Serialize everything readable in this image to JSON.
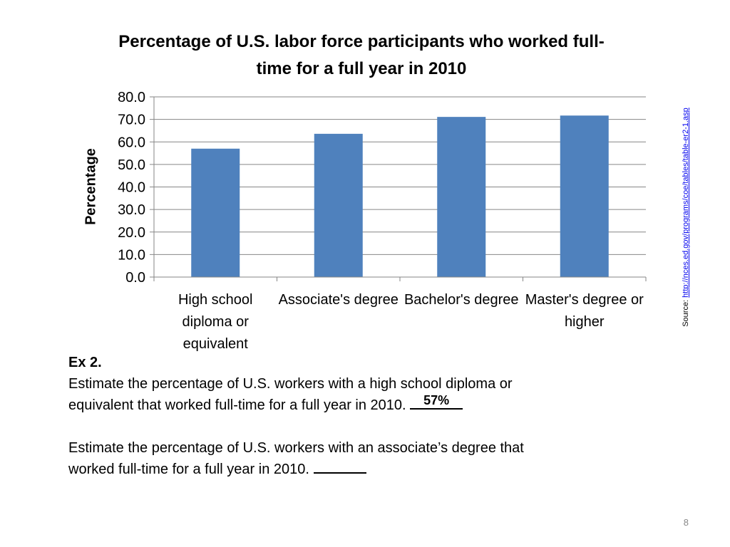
{
  "chart_data": {
    "type": "bar",
    "title": "Percentage of U.S. labor force participants who worked full-time for a full year in 2010",
    "ylabel": "Percentage",
    "xlabel": "",
    "categories": [
      "High school diploma or equivalent",
      "Associate's degree",
      "Bachelor's degree",
      "Master's degree or higher"
    ],
    "values": [
      57.0,
      63.6,
      71.1,
      71.7
    ],
    "ylim": [
      0,
      80
    ],
    "yticks": [
      "0.0",
      "10.0",
      "20.0",
      "30.0",
      "40.0",
      "50.0",
      "60.0",
      "70.0",
      "80.0"
    ],
    "grid": true,
    "legend": "none",
    "bar_color": "#4F81BD"
  },
  "source": {
    "prefix": "Source:",
    "url": "http://nces.ed.gov/programs/coe/tables/table-er2-1.asp"
  },
  "exercise": {
    "heading": "Ex 2.",
    "q1_line1": "Estimate the percentage of U.S. workers with a high school diploma or",
    "q1_line2": "equivalent that worked full-time for a full year in 2010.",
    "q1_answer": "57%",
    "q2_line1": "Estimate the percentage of U.S. workers with an associate’s degree that",
    "q2_line2": "worked full-time for a full year in 2010.",
    "q2_answer": ""
  },
  "page_number": "8"
}
